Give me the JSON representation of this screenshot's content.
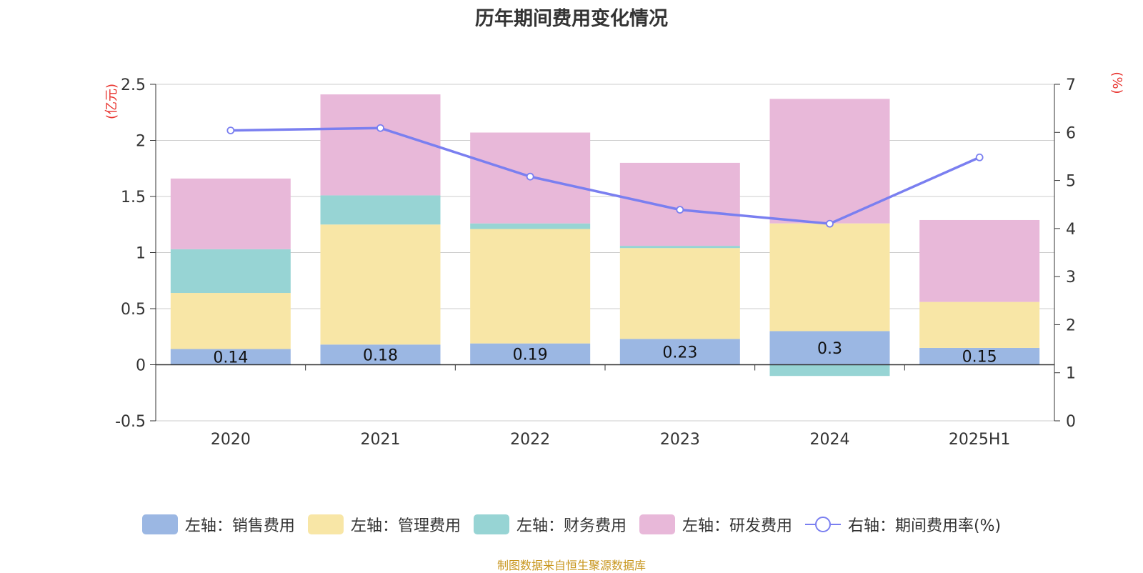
{
  "chart_data": {
    "type": "bar",
    "stacked": true,
    "title": "历年期间费用变化情况",
    "categories": [
      "2020",
      "2021",
      "2022",
      "2023",
      "2024",
      "2025H1"
    ],
    "left_axis": {
      "label": "(亿元)",
      "ylim": [
        -0.5,
        2.5
      ],
      "ticks": [
        "-0.5",
        "0",
        "0.5",
        "1",
        "1.5",
        "2",
        "2.5"
      ]
    },
    "right_axis": {
      "label": "(%)",
      "ylim": [
        0,
        7
      ],
      "ticks": [
        "0",
        "1",
        "2",
        "3",
        "4",
        "5",
        "6",
        "7"
      ]
    },
    "series": [
      {
        "name": "左轴：销售费用",
        "type": "bar",
        "axis": "left",
        "color": "#9bb7e3",
        "values": [
          0.14,
          0.18,
          0.19,
          0.23,
          0.3,
          0.15
        ],
        "labels": [
          "0.14",
          "0.18",
          "0.19",
          "0.23",
          "0.3",
          "0.15"
        ]
      },
      {
        "name": "左轴：管理费用",
        "type": "bar",
        "axis": "left",
        "color": "#f8e6a6",
        "values": [
          0.5,
          1.07,
          1.02,
          0.81,
          0.96,
          0.41
        ]
      },
      {
        "name": "左轴：财务费用",
        "type": "bar",
        "axis": "left",
        "color": "#97d4d4",
        "values": [
          0.39,
          0.26,
          0.05,
          0.02,
          -0.1,
          0.0
        ]
      },
      {
        "name": "左轴：研发费用",
        "type": "bar",
        "axis": "left",
        "color": "#e8b8d9",
        "values": [
          0.63,
          0.9,
          0.81,
          0.74,
          1.11,
          0.73
        ]
      },
      {
        "name": "右轴：期间费用率(%)",
        "type": "line",
        "axis": "right",
        "color": "#7a7ff0",
        "values": [
          6.04,
          6.09,
          5.08,
          4.39,
          4.1,
          5.48
        ]
      }
    ],
    "grid": true,
    "legend_position": "bottom"
  },
  "source_note": "制图数据来自恒生聚源数据库",
  "colors": {
    "axis_label": "#e8332e",
    "tick_text": "#333333",
    "grid": "#cccccc"
  }
}
